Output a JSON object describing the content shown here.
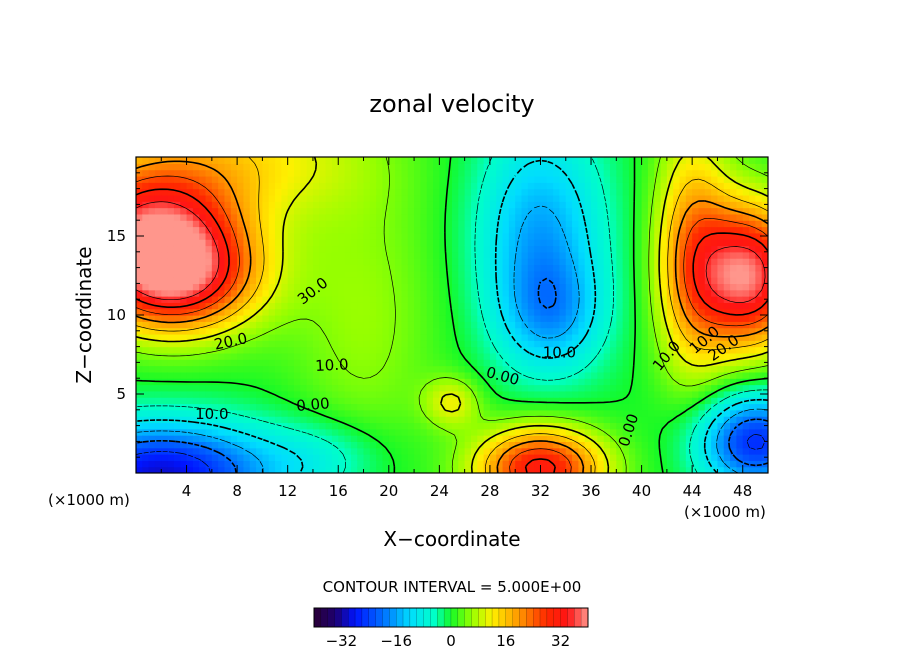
{
  "chart_data": {
    "type": "heatmap",
    "title": "zonal velocity",
    "xlabel": "X−coordinate",
    "ylabel": "Z−coordinate",
    "x_units": "(×1000 m)",
    "z_units": "(×1000 m)",
    "xlim": [
      0,
      50
    ],
    "ylim": [
      0,
      20
    ],
    "x_ticks": [
      "4",
      "8",
      "12",
      "16",
      "20",
      "24",
      "28",
      "32",
      "36",
      "40",
      "44",
      "48"
    ],
    "y_ticks": [
      "5",
      "10",
      "15"
    ],
    "contour_interval_label": "CONTOUR INTERVAL = 5.000E+00",
    "contour_labels": [
      "30.0",
      "20.0",
      "10.0",
      "0.00",
      "10.0",
      "0.00",
      "10.0",
      "0.00",
      "10.0",
      "20.0",
      "10.0"
    ],
    "colorbar": {
      "range": [
        -40,
        40
      ],
      "ticks": [
        "−32",
        "−16",
        "0",
        "16",
        "32"
      ],
      "tick_values": [
        -32,
        -16,
        0,
        16,
        32
      ]
    },
    "grid": false,
    "field_features": [
      {
        "kind": "max",
        "x": 3,
        "z": 12,
        "value": 36
      },
      {
        "kind": "max",
        "x": 1,
        "z": 15,
        "value": 32
      },
      {
        "kind": "max",
        "x": 48,
        "z": 12,
        "value": 36
      },
      {
        "kind": "max",
        "x": 32,
        "z": 1,
        "value": 32
      },
      {
        "kind": "min",
        "x": 2,
        "z": 1,
        "value": -28
      },
      {
        "kind": "min",
        "x": 48,
        "z": 2,
        "value": -24
      },
      {
        "kind": "min",
        "x": 32,
        "z": 16,
        "value": -14
      },
      {
        "kind": "min",
        "x": 33,
        "z": 10,
        "value": -12
      },
      {
        "kind": "max",
        "x": 25,
        "z": 4.5,
        "value": 8
      }
    ]
  }
}
